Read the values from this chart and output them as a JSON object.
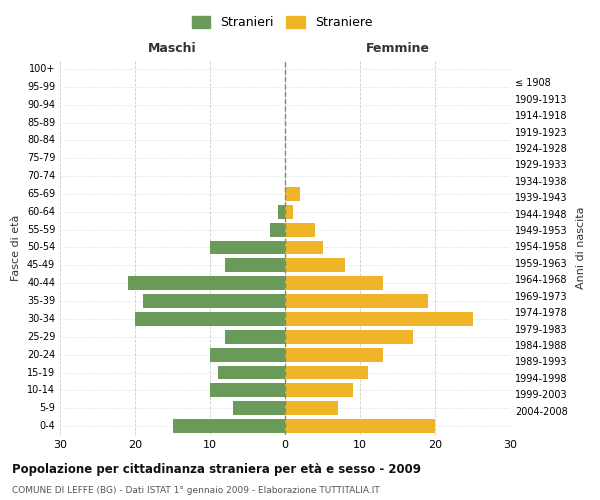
{
  "age_groups": [
    "0-4",
    "5-9",
    "10-14",
    "15-19",
    "20-24",
    "25-29",
    "30-34",
    "35-39",
    "40-44",
    "45-49",
    "50-54",
    "55-59",
    "60-64",
    "65-69",
    "70-74",
    "75-79",
    "80-84",
    "85-89",
    "90-94",
    "95-99",
    "100+"
  ],
  "birth_years": [
    "2004-2008",
    "1999-2003",
    "1994-1998",
    "1989-1993",
    "1984-1988",
    "1979-1983",
    "1974-1978",
    "1969-1973",
    "1964-1968",
    "1959-1963",
    "1954-1958",
    "1949-1953",
    "1944-1948",
    "1939-1943",
    "1934-1938",
    "1929-1933",
    "1924-1928",
    "1919-1923",
    "1914-1918",
    "1909-1913",
    "≤ 1908"
  ],
  "males": [
    15,
    7,
    10,
    9,
    10,
    8,
    20,
    19,
    21,
    8,
    10,
    2,
    1,
    0,
    0,
    0,
    0,
    0,
    0,
    0,
    0
  ],
  "females": [
    20,
    7,
    9,
    11,
    13,
    17,
    25,
    19,
    13,
    8,
    5,
    4,
    1,
    2,
    0,
    0,
    0,
    0,
    0,
    0,
    0
  ],
  "male_color": "#6a9a5a",
  "female_color": "#f0b429",
  "background_color": "#ffffff",
  "grid_color": "#cccccc",
  "title": "Popolazione per cittadinanza straniera per età e sesso - 2009",
  "subtitle": "COMUNE DI LEFFE (BG) - Dati ISTAT 1° gennaio 2009 - Elaborazione TUTTITALIA.IT",
  "xlabel_left": "Maschi",
  "xlabel_right": "Femmine",
  "ylabel_left": "Fasce di età",
  "ylabel_right": "Anni di nascita",
  "legend_males": "Stranieri",
  "legend_females": "Straniere",
  "xlim": 30,
  "center_line_color": "#888866"
}
